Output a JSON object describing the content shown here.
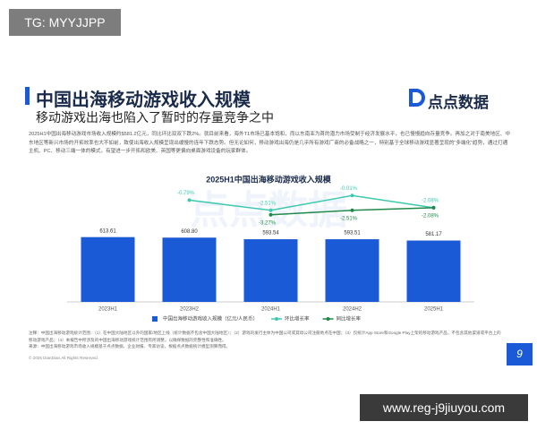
{
  "watermark_tag": "TG: MYYJJPP",
  "header": {
    "title": "中国出海移动游戏收入规模",
    "subtitle": "移动游戏出海也陷入了暂时的存量竞争之中",
    "logo": "点点数据"
  },
  "paragraph": "2025H1中国出海移动游戏市场收入规模约$581.2亿元，同比环比双双下跌2%。就目前来看，海外T1市场已基本饱和，而以东南亚为首的潜力市场受制于经济发展水平，也已慢慢趋向存量竞争。再加之对于南美地区、中东地区等新兴市场的开拓效率也大不如前，致使出海收入规模呈现出缓慢的连年下跌态势。但无论如何，移动游戏出海仍是几乎所有游戏厂商的必备战略之一，特别基于全球移动游戏显著呈现的“多端化”趋势，通过打通主机、PC、移动三端一体的模式，有望进一步开拓和欧美、英国等更偏向桌面游戏设备的玩家群体。",
  "chart_data": {
    "type": "bar",
    "title": "2025H1中国出海移动游戏收入规模",
    "watermark": "点点数据",
    "categories": [
      "2023H1",
      "2023H2",
      "2024H1",
      "2024H2",
      "2025H1"
    ],
    "ylim": [
      0,
      1120
    ],
    "y2lim": [
      -18,
      2
    ],
    "legend": "bottom",
    "series": [
      {
        "name": "中国出海移动游戏收入规模（亿元/人民币）",
        "type": "bar",
        "color": "#1b5ad6",
        "values": [
          613.61,
          608.8,
          593.54,
          593.51,
          581.17
        ],
        "value_labels": [
          "613.61",
          "608.80",
          "593.54",
          "593.51",
          "581.17"
        ]
      },
      {
        "name": "环比增长率",
        "type": "line",
        "axis": "y2",
        "color": "#3cc9b0",
        "label_side": "above",
        "values": [
          null,
          -0.79,
          -2.51,
          -0.01,
          -2.08
        ],
        "value_labels": [
          null,
          "-0.79%",
          "-2.51%",
          "-0.01%",
          "-2.08%"
        ]
      },
      {
        "name": "同比增长率",
        "type": "line",
        "axis": "y2",
        "color": "#1f8a4a",
        "label_side": "below",
        "values": [
          null,
          null,
          -3.27,
          -2.51,
          -2.08
        ],
        "value_labels": [
          null,
          null,
          "-3.27%",
          "-2.51%",
          "-2.08%"
        ]
      }
    ]
  },
  "notes": [
    "注释：中国出海移动游戏统计范围：（1）在中国大陆地区以外的国家/地区上线（统计数据不包含中国大陆地区）；（2）游戏的发行主体为中国公司或其母公司注册地点在中国；（3）仅统计App Store和Google Play上架的移动游戏产品，不包含其他渠道或平台上的移动游戏产品；（4）本报告中所涉及的中国出海移动游戏统计范围有所调整，以确保数据的完整性和准确性。",
    "来源：中国出海移动游戏市场收入规模基于点点数据、企业财报、专家访谈，根据点点数据统计模型测算而得。"
  ],
  "copyright": "© 2025 DianDian.All Rights Reserved.",
  "page_number": "9",
  "watermark_url": "www.reg-j9jiuyou.com"
}
